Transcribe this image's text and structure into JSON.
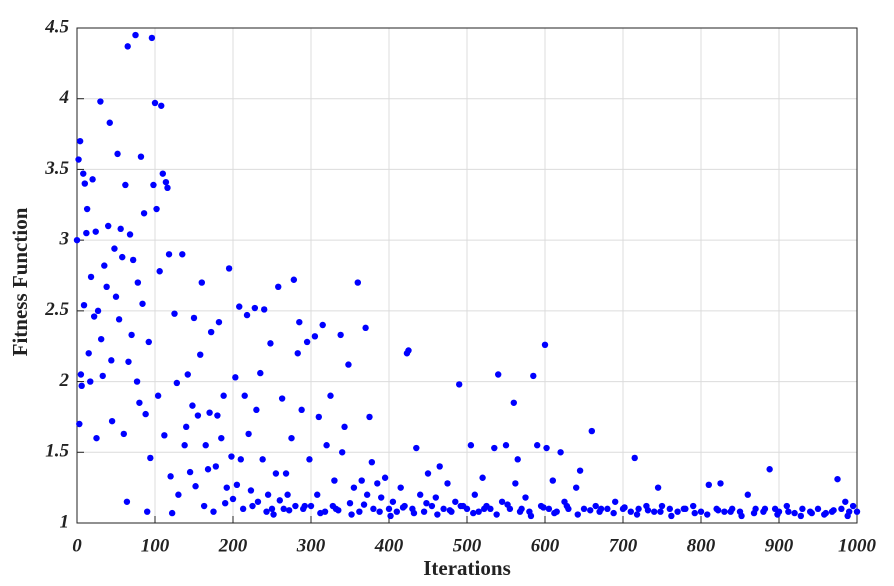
{
  "chart_data": {
    "type": "scatter",
    "xlabel": "Iterations",
    "ylabel": "Fitness Function",
    "color": "#0000ff",
    "grid": true,
    "xlim": [
      0,
      1000
    ],
    "xticks": [
      0,
      100,
      200,
      300,
      400,
      500,
      600,
      700,
      800,
      900,
      1000
    ],
    "ylim": [
      1,
      4.5
    ],
    "yticks": [
      1,
      1.5,
      2,
      2.5,
      3,
      3.5,
      4,
      4.5
    ],
    "x": [
      0,
      2,
      4,
      3,
      5,
      6,
      8,
      9,
      10,
      12,
      13,
      15,
      17,
      18,
      20,
      22,
      24,
      25,
      27,
      30,
      31,
      33,
      35,
      38,
      40,
      42,
      44,
      45,
      48,
      50,
      52,
      54,
      56,
      58,
      60,
      62,
      64,
      65,
      66,
      68,
      70,
      72,
      75,
      77,
      78,
      80,
      82,
      84,
      86,
      88,
      90,
      92,
      94,
      96,
      98,
      100,
      102,
      104,
      106,
      108,
      110,
      112,
      114,
      116,
      118,
      120,
      122,
      125,
      128,
      130,
      135,
      138,
      140,
      142,
      145,
      148,
      150,
      152,
      155,
      158,
      160,
      163,
      165,
      168,
      170,
      172,
      175,
      178,
      180,
      182,
      185,
      188,
      190,
      192,
      195,
      198,
      200,
      203,
      205,
      208,
      210,
      213,
      215,
      218,
      220,
      223,
      225,
      228,
      230,
      232,
      235,
      238,
      240,
      243,
      245,
      248,
      250,
      255,
      258,
      260,
      263,
      265,
      268,
      270,
      275,
      278,
      280,
      283,
      285,
      288,
      290,
      295,
      298,
      300,
      305,
      308,
      310,
      315,
      318,
      320,
      325,
      328,
      330,
      335,
      338,
      340,
      343,
      348,
      350,
      355,
      360,
      362,
      365,
      370,
      372,
      375,
      378,
      380,
      385,
      390,
      395,
      400,
      405,
      410,
      415,
      420,
      423,
      425,
      430,
      435,
      440,
      445,
      450,
      455,
      460,
      465,
      470,
      475,
      480,
      485,
      490,
      495,
      500,
      505,
      510,
      515,
      520,
      525,
      530,
      535,
      540,
      545,
      550,
      555,
      560,
      562,
      565,
      570,
      575,
      580,
      585,
      590,
      595,
      600,
      602,
      605,
      610,
      615,
      620,
      625,
      630,
      640,
      645,
      650,
      660,
      665,
      670,
      680,
      690,
      700,
      710,
      715,
      720,
      730,
      740,
      745,
      750,
      760,
      770,
      780,
      790,
      800,
      810,
      820,
      825,
      830,
      840,
      850,
      860,
      870,
      880,
      888,
      895,
      900,
      910,
      920,
      930,
      940,
      950,
      960,
      970,
      975,
      980,
      985,
      990,
      995,
      1000,
      252,
      272,
      292,
      312,
      332,
      352,
      368,
      388,
      402,
      418,
      432,
      448,
      462,
      478,
      492,
      508,
      522,
      538,
      552,
      568,
      582,
      598,
      612,
      628,
      642,
      658,
      672,
      688,
      702,
      718,
      732,
      748,
      762,
      778,
      792,
      808,
      822,
      838,
      852,
      868,
      882,
      898,
      912,
      928,
      942,
      958,
      968,
      988
    ],
    "values": [
      3.0,
      3.57,
      3.7,
      1.7,
      2.05,
      1.97,
      3.47,
      2.54,
      3.4,
      3.05,
      3.22,
      2.2,
      2.0,
      2.74,
      3.43,
      2.46,
      3.06,
      1.6,
      2.5,
      3.98,
      2.3,
      2.04,
      2.82,
      2.67,
      3.1,
      3.83,
      2.15,
      1.72,
      2.94,
      2.6,
      3.61,
      2.44,
      3.08,
      2.88,
      1.63,
      3.39,
      1.15,
      4.37,
      2.14,
      3.04,
      2.33,
      2.86,
      4.45,
      2.0,
      2.7,
      1.85,
      3.59,
      2.55,
      3.19,
      1.77,
      1.08,
      2.28,
      1.46,
      4.43,
      3.39,
      3.97,
      3.22,
      1.9,
      2.78,
      3.95,
      3.47,
      1.62,
      3.41,
      3.37,
      2.9,
      1.33,
      1.07,
      2.48,
      1.99,
      1.2,
      2.9,
      1.55,
      1.68,
      2.05,
      1.36,
      1.83,
      2.45,
      1.26,
      1.76,
      2.19,
      2.7,
      1.12,
      1.55,
      1.38,
      1.78,
      2.35,
      1.08,
      1.4,
      1.76,
      2.42,
      1.6,
      1.9,
      1.14,
      1.25,
      2.8,
      1.47,
      1.17,
      2.03,
      1.27,
      2.53,
      1.45,
      1.1,
      1.9,
      2.47,
      1.63,
      1.23,
      1.12,
      2.52,
      1.8,
      1.15,
      2.06,
      1.45,
      2.51,
      1.08,
      1.2,
      2.27,
      1.1,
      1.35,
      2.67,
      1.16,
      1.88,
      1.1,
      1.35,
      1.2,
      1.6,
      2.72,
      1.12,
      2.2,
      2.42,
      1.8,
      1.1,
      2.28,
      1.45,
      1.12,
      2.32,
      1.2,
      1.75,
      2.4,
      1.08,
      1.55,
      1.9,
      1.12,
      1.3,
      1.09,
      2.33,
      1.5,
      1.68,
      2.12,
      1.14,
      1.25,
      2.7,
      1.08,
      1.3,
      2.38,
      1.2,
      1.75,
      1.43,
      1.1,
      1.28,
      1.18,
      1.32,
      1.1,
      1.15,
      1.08,
      1.25,
      1.12,
      2.2,
      2.22,
      1.1,
      1.53,
      1.2,
      1.08,
      1.35,
      1.12,
      1.18,
      1.4,
      1.1,
      1.28,
      1.08,
      1.15,
      1.98,
      1.12,
      1.1,
      1.55,
      1.2,
      1.08,
      1.32,
      1.12,
      1.1,
      1.53,
      2.05,
      1.15,
      1.55,
      1.1,
      1.85,
      1.28,
      1.45,
      1.1,
      1.18,
      1.08,
      2.04,
      1.55,
      1.12,
      2.26,
      1.53,
      1.1,
      1.3,
      1.08,
      1.5,
      1.15,
      1.1,
      1.25,
      1.37,
      1.1,
      1.65,
      1.12,
      1.08,
      1.1,
      1.15,
      1.1,
      1.08,
      1.46,
      1.1,
      1.12,
      1.08,
      1.25,
      1.12,
      1.1,
      1.08,
      1.1,
      1.12,
      1.08,
      1.27,
      1.1,
      1.28,
      1.08,
      1.1,
      1.08,
      1.2,
      1.1,
      1.08,
      1.38,
      1.1,
      1.08,
      1.12,
      1.07,
      1.1,
      1.08,
      1.1,
      1.07,
      1.09,
      1.31,
      1.1,
      1.15,
      1.08,
      1.12,
      1.08,
      1.06,
      1.09,
      1.12,
      1.07,
      1.1,
      1.06,
      1.13,
      1.08,
      1.05,
      1.11,
      1.07,
      1.14,
      1.06,
      1.09,
      1.12,
      1.07,
      1.1,
      1.06,
      1.13,
      1.08,
      1.05,
      1.11,
      1.07,
      1.12,
      1.06,
      1.09,
      1.1,
      1.07,
      1.11,
      1.06,
      1.09,
      1.08,
      1.05,
      1.1,
      1.07,
      1.06,
      1.09,
      1.08,
      1.05,
      1.07,
      1.1,
      1.06,
      1.08,
      1.05,
      1.07,
      1.06,
      1.08,
      1.05
    ]
  }
}
